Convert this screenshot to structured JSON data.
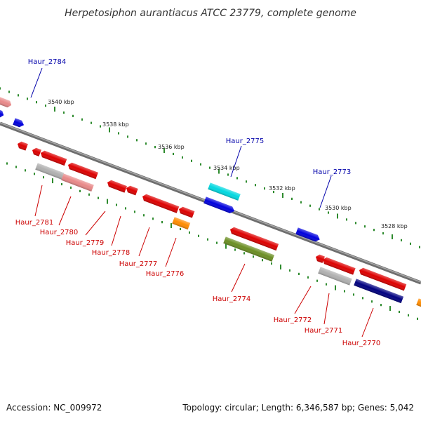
{
  "title": "Herpetosiphon aurantiacus ATCC 23779, complete genome",
  "accession": "Accession: NC_009972",
  "summary": "Topology: circular; Length: 6,346,587 bp; Genes: 5,042",
  "colors": {
    "backbone": "#808080",
    "scale_ticks": "#2e8b2e",
    "forward_label": "#0000aa",
    "reverse_label": "#cc0000"
  },
  "scale_labels": [
    "3540 kbp",
    "3538 kbp",
    "3536 kbp",
    "3534 kbp",
    "3532 kbp",
    "3530 kbp",
    "3528 kbp"
  ],
  "genes_forward_labeled": [
    {
      "name": "Haur_2784",
      "color": "#0000dd"
    },
    {
      "name": "Haur_2775",
      "color": "#00d8e0"
    },
    {
      "name": "Haur_2773",
      "color": "#0000dd"
    }
  ],
  "genes_reverse_labeled": [
    {
      "name": "Haur_2781",
      "color": "#b0b0b0"
    },
    {
      "name": "Haur_2780",
      "color": "#e88888"
    },
    {
      "name": "Haur_2779",
      "color": "#dd0000"
    },
    {
      "name": "Haur_2778",
      "color": "#dd0000"
    },
    {
      "name": "Haur_2777",
      "color": "#dd0000"
    },
    {
      "name": "Haur_2776",
      "color": "#ff8c00"
    },
    {
      "name": "Haur_2774",
      "color": "#6b8e23"
    },
    {
      "name": "Haur_2772",
      "color": "#b0b0b0"
    },
    {
      "name": "Haur_2771",
      "color": "#dd0000"
    },
    {
      "name": "Haur_2770",
      "color": "#000080"
    }
  ],
  "genes_unlabeled_colors": [
    "#e88888",
    "#0000dd",
    "#dd0000",
    "#ff8c00"
  ]
}
